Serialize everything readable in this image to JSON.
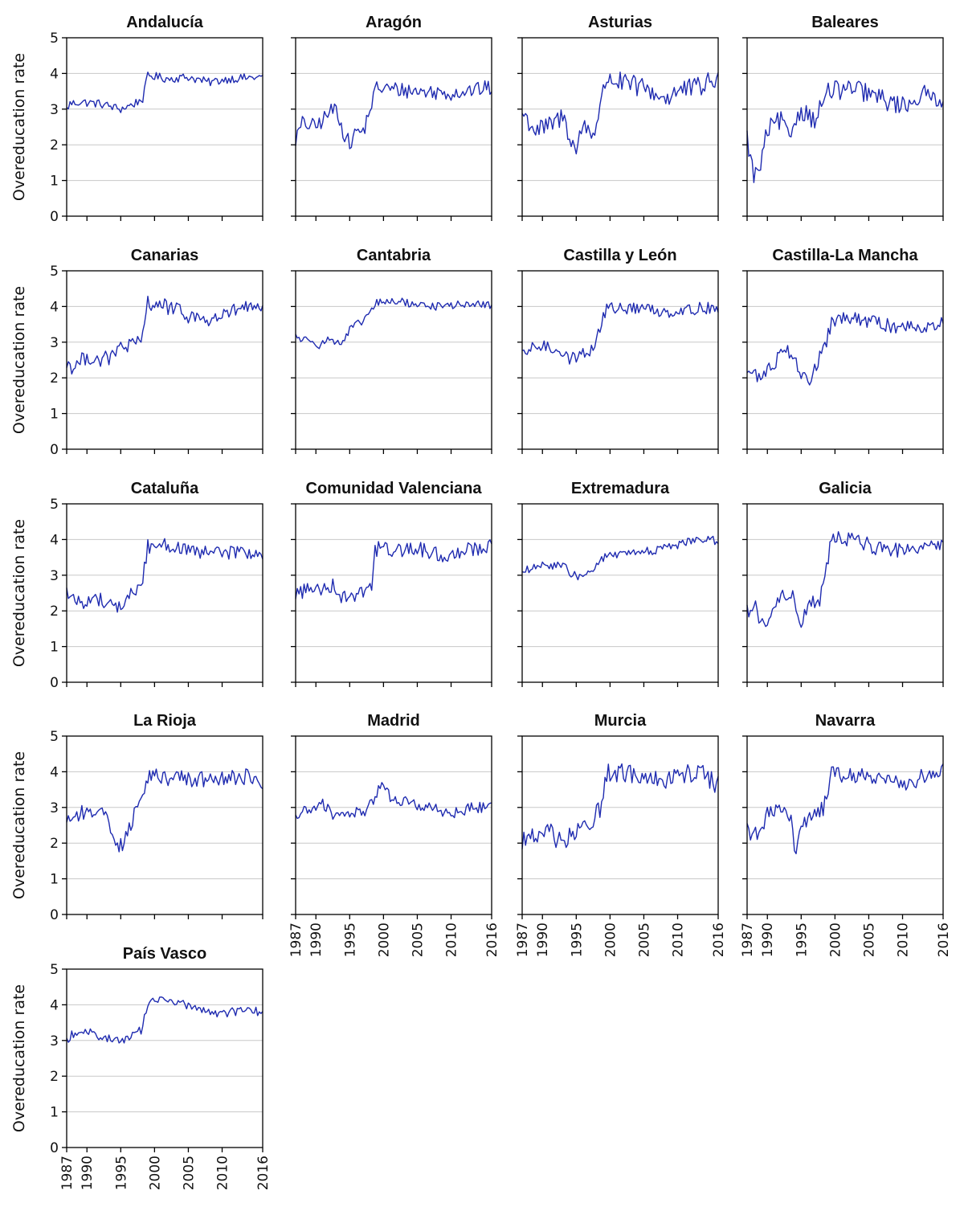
{
  "chart_data": {
    "type": "line",
    "ylabel": "Overeducation rate",
    "ylim": [
      0,
      5
    ],
    "y_ticks": [
      0,
      1,
      2,
      3,
      4,
      5
    ],
    "xlim": [
      1987,
      2016
    ],
    "x_ticks": [
      1987,
      1990,
      1995,
      2000,
      2005,
      2010,
      2016
    ],
    "grid": "horizontal",
    "color": "#1f2bb0",
    "panels": [
      {
        "title": "Andalucía",
        "anchors": [
          [
            1987,
            3.0
          ],
          [
            1987.5,
            3.15
          ],
          [
            1989,
            3.2
          ],
          [
            1992,
            3.15
          ],
          [
            1994,
            3.05
          ],
          [
            1995,
            3.0
          ],
          [
            1997,
            3.15
          ],
          [
            1998.3,
            3.3
          ],
          [
            1999,
            3.95
          ],
          [
            2002,
            3.85
          ],
          [
            2005,
            3.9
          ],
          [
            2008,
            3.75
          ],
          [
            2011,
            3.85
          ],
          [
            2016,
            3.9
          ]
        ],
        "noise": 0.12
      },
      {
        "title": "Aragón",
        "anchors": [
          [
            1987,
            2.15
          ],
          [
            1988,
            2.6
          ],
          [
            1990,
            2.5
          ],
          [
            1992,
            2.9
          ],
          [
            1993,
            3.05
          ],
          [
            1994,
            2.4
          ],
          [
            1995,
            2.0
          ],
          [
            1996,
            2.4
          ],
          [
            1997,
            2.35
          ],
          [
            1998.3,
            3.2
          ],
          [
            1999,
            3.6
          ],
          [
            2002,
            3.55
          ],
          [
            2005,
            3.5
          ],
          [
            2010,
            3.45
          ],
          [
            2016,
            3.6
          ]
        ],
        "noise": 0.22
      },
      {
        "title": "Asturias",
        "anchors": [
          [
            1987,
            2.9
          ],
          [
            1989,
            2.4
          ],
          [
            1991,
            2.5
          ],
          [
            1993,
            2.8
          ],
          [
            1995,
            1.8
          ],
          [
            1996,
            2.6
          ],
          [
            1997.5,
            2.3
          ],
          [
            1998.5,
            3.0
          ],
          [
            1999.5,
            3.9
          ],
          [
            2002,
            3.7
          ],
          [
            2005,
            3.6
          ],
          [
            2008,
            3.3
          ],
          [
            2010,
            3.5
          ],
          [
            2013,
            3.6
          ],
          [
            2016,
            3.85
          ]
        ],
        "noise": 0.3
      },
      {
        "title": "Baleares",
        "anchors": [
          [
            1987,
            2.2
          ],
          [
            1988,
            1.1
          ],
          [
            1989,
            1.4
          ],
          [
            1990,
            2.4
          ],
          [
            1992,
            2.7
          ],
          [
            1993,
            2.2
          ],
          [
            1995,
            3.0
          ],
          [
            1997,
            2.7
          ],
          [
            1999,
            3.5
          ],
          [
            2002,
            3.55
          ],
          [
            2004,
            3.5
          ],
          [
            2008,
            3.2
          ],
          [
            2010,
            3.1
          ],
          [
            2013,
            3.4
          ],
          [
            2016,
            3.3
          ]
        ],
        "noise": 0.28
      },
      {
        "title": "Canarias",
        "anchors": [
          [
            1987,
            2.4
          ],
          [
            1988,
            2.3
          ],
          [
            1990,
            2.6
          ],
          [
            1992,
            2.5
          ],
          [
            1994,
            2.6
          ],
          [
            1995,
            2.9
          ],
          [
            1997,
            2.9
          ],
          [
            1998,
            3.0
          ],
          [
            1999,
            4.1
          ],
          [
            2001,
            4.05
          ],
          [
            2003,
            3.9
          ],
          [
            2005,
            3.75
          ],
          [
            2008,
            3.6
          ],
          [
            2011,
            3.8
          ],
          [
            2013,
            4.0
          ],
          [
            2016,
            3.85
          ]
        ],
        "noise": 0.22
      },
      {
        "title": "Cantabria",
        "anchors": [
          [
            1987,
            3.2
          ],
          [
            1988,
            3.05
          ],
          [
            1989.5,
            3.1
          ],
          [
            1990.5,
            2.9
          ],
          [
            1992,
            3.1
          ],
          [
            1994,
            2.95
          ],
          [
            1995,
            3.35
          ],
          [
            1997,
            3.6
          ],
          [
            1999,
            4.1
          ],
          [
            2002,
            4.15
          ],
          [
            2005,
            4.05
          ],
          [
            2008,
            4.0
          ],
          [
            2011,
            4.05
          ],
          [
            2016,
            4.05
          ]
        ],
        "noise": 0.11
      },
      {
        "title": "Castilla y León",
        "anchors": [
          [
            1987,
            2.6
          ],
          [
            1989,
            2.9
          ],
          [
            1991,
            2.85
          ],
          [
            1993,
            2.75
          ],
          [
            1994,
            2.5
          ],
          [
            1996,
            2.7
          ],
          [
            1997.5,
            2.8
          ],
          [
            1998.5,
            3.4
          ],
          [
            1999.5,
            3.95
          ],
          [
            2002,
            3.95
          ],
          [
            2005,
            3.95
          ],
          [
            2008,
            3.85
          ],
          [
            2011,
            3.9
          ],
          [
            2016,
            4.0
          ]
        ],
        "noise": 0.17
      },
      {
        "title": "Castilla-La Mancha",
        "anchors": [
          [
            1987,
            2.2
          ],
          [
            1989,
            2.0
          ],
          [
            1991,
            2.4
          ],
          [
            1992.5,
            2.9
          ],
          [
            1994,
            2.6
          ],
          [
            1995,
            2.1
          ],
          [
            1996,
            1.8
          ],
          [
            1997,
            2.3
          ],
          [
            1998.5,
            2.8
          ],
          [
            1999.5,
            3.6
          ],
          [
            2002,
            3.65
          ],
          [
            2005,
            3.6
          ],
          [
            2008,
            3.45
          ],
          [
            2011,
            3.45
          ],
          [
            2016,
            3.5
          ]
        ],
        "noise": 0.2
      },
      {
        "title": "Cataluña",
        "anchors": [
          [
            1987,
            2.55
          ],
          [
            1988,
            2.3
          ],
          [
            1990,
            2.25
          ],
          [
            1992,
            2.35
          ],
          [
            1994,
            2.1
          ],
          [
            1995,
            2.1
          ],
          [
            1996,
            2.4
          ],
          [
            1998,
            2.65
          ],
          [
            1999,
            3.8
          ],
          [
            2001,
            3.9
          ],
          [
            2003,
            3.8
          ],
          [
            2006,
            3.6
          ],
          [
            2010,
            3.65
          ],
          [
            2016,
            3.6
          ]
        ],
        "noise": 0.2
      },
      {
        "title": "Comunidad Valenciana",
        "anchors": [
          [
            1987,
            2.5
          ],
          [
            1989,
            2.6
          ],
          [
            1991,
            2.65
          ],
          [
            1992.5,
            2.75
          ],
          [
            1994,
            2.35
          ],
          [
            1995,
            2.4
          ],
          [
            1997,
            2.6
          ],
          [
            1998.3,
            2.7
          ],
          [
            1998.8,
            3.75
          ],
          [
            2002,
            3.7
          ],
          [
            2005,
            3.75
          ],
          [
            2009,
            3.5
          ],
          [
            2012,
            3.75
          ],
          [
            2016,
            3.8
          ]
        ],
        "noise": 0.22
      },
      {
        "title": "Extremadura",
        "anchors": [
          [
            1987,
            3.1
          ],
          [
            1989,
            3.2
          ],
          [
            1991,
            3.3
          ],
          [
            1993,
            3.25
          ],
          [
            1995,
            2.95
          ],
          [
            1997,
            3.05
          ],
          [
            1999,
            3.5
          ],
          [
            2002,
            3.6
          ],
          [
            2005,
            3.65
          ],
          [
            2008,
            3.75
          ],
          [
            2011,
            3.9
          ],
          [
            2013,
            4.05
          ],
          [
            2016,
            3.95
          ]
        ],
        "noise": 0.12
      },
      {
        "title": "Galicia",
        "anchors": [
          [
            1987,
            2.0
          ],
          [
            1988,
            2.2
          ],
          [
            1989.5,
            1.5
          ],
          [
            1990.5,
            1.8
          ],
          [
            1992,
            2.5
          ],
          [
            1993,
            2.3
          ],
          [
            1994,
            2.4
          ],
          [
            1995,
            1.4
          ],
          [
            1996,
            2.3
          ],
          [
            1997.5,
            2.1
          ],
          [
            1998.5,
            3.0
          ],
          [
            1999.5,
            4.05
          ],
          [
            2001,
            4.05
          ],
          [
            2004,
            3.95
          ],
          [
            2008,
            3.6
          ],
          [
            2011,
            3.85
          ],
          [
            2016,
            3.8
          ]
        ],
        "noise": 0.22
      },
      {
        "title": "La Rioja",
        "anchors": [
          [
            1987,
            2.7
          ],
          [
            1989,
            2.8
          ],
          [
            1991,
            2.9
          ],
          [
            1993,
            2.9
          ],
          [
            1994,
            2.1
          ],
          [
            1995,
            1.9
          ],
          [
            1996,
            2.4
          ],
          [
            1998,
            3.1
          ],
          [
            1999,
            3.9
          ],
          [
            2002,
            3.85
          ],
          [
            2005,
            3.8
          ],
          [
            2008,
            3.75
          ],
          [
            2011,
            3.8
          ],
          [
            2013,
            3.9
          ],
          [
            2016,
            3.6
          ]
        ],
        "noise": 0.24
      },
      {
        "title": "Madrid",
        "anchors": [
          [
            1987,
            2.75
          ],
          [
            1989,
            2.95
          ],
          [
            1991,
            3.1
          ],
          [
            1993,
            2.7
          ],
          [
            1995,
            2.85
          ],
          [
            1997,
            2.85
          ],
          [
            1998.5,
            3.2
          ],
          [
            1999.5,
            3.65
          ],
          [
            2001,
            3.3
          ],
          [
            2004,
            3.1
          ],
          [
            2007,
            3.0
          ],
          [
            2010,
            2.8
          ],
          [
            2013,
            3.0
          ],
          [
            2016,
            3.0
          ]
        ],
        "noise": 0.16
      },
      {
        "title": "Murcia",
        "anchors": [
          [
            1987,
            2.1
          ],
          [
            1989,
            2.15
          ],
          [
            1991,
            2.3
          ],
          [
            1993,
            2.0
          ],
          [
            1995,
            2.3
          ],
          [
            1997,
            2.5
          ],
          [
            1998.5,
            3.0
          ],
          [
            1999.5,
            4.0
          ],
          [
            2002,
            3.95
          ],
          [
            2005,
            3.9
          ],
          [
            2008,
            3.8
          ],
          [
            2011,
            3.9
          ],
          [
            2013,
            4.05
          ],
          [
            2015.5,
            3.7
          ],
          [
            2016,
            3.9
          ]
        ],
        "noise": 0.28
      },
      {
        "title": "Navarra",
        "anchors": [
          [
            1987,
            2.6
          ],
          [
            1987.7,
            2.1
          ],
          [
            1989,
            2.4
          ],
          [
            1990,
            2.8
          ],
          [
            1992,
            3.0
          ],
          [
            1993.5,
            2.7
          ],
          [
            1994.2,
            1.6
          ],
          [
            1995,
            2.5
          ],
          [
            1997,
            2.75
          ],
          [
            1998.3,
            3.0
          ],
          [
            1999.5,
            3.95
          ],
          [
            2002,
            3.9
          ],
          [
            2005,
            3.85
          ],
          [
            2008,
            3.7
          ],
          [
            2011,
            3.65
          ],
          [
            2014,
            4.0
          ],
          [
            2016,
            4.0
          ]
        ],
        "noise": 0.22
      },
      {
        "title": "País Vasco",
        "anchors": [
          [
            1987,
            3.0
          ],
          [
            1988,
            3.2
          ],
          [
            1990,
            3.25
          ],
          [
            1992,
            3.1
          ],
          [
            1994,
            3.05
          ],
          [
            1995,
            2.95
          ],
          [
            1996,
            3.1
          ],
          [
            1998,
            3.3
          ],
          [
            1999,
            4.05
          ],
          [
            2001,
            4.1
          ],
          [
            2004,
            4.05
          ],
          [
            2007,
            3.85
          ],
          [
            2010,
            3.75
          ],
          [
            2013,
            3.85
          ],
          [
            2016,
            3.8
          ]
        ],
        "noise": 0.12
      }
    ]
  }
}
